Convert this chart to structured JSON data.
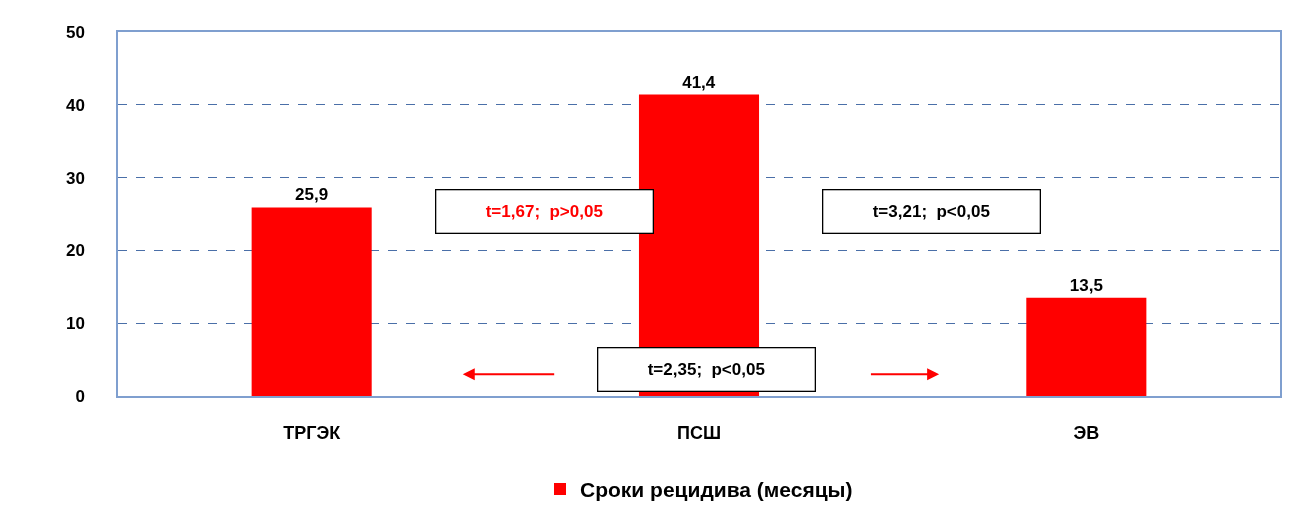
{
  "chart_data": {
    "type": "bar",
    "categories": [
      "ТРГЭК",
      "ПСШ",
      "ЭВ"
    ],
    "series": [
      {
        "name": "Сроки рецидива (месяцы)",
        "color": "#ff0000",
        "values": [
          25.9,
          41.4,
          13.5
        ],
        "value_labels": [
          "25,9",
          "41,4",
          "13,5"
        ]
      }
    ],
    "ylim": [
      0,
      50
    ],
    "yticks": [
      0,
      10,
      20,
      30,
      40,
      50
    ],
    "grid": "y",
    "legend": "bottom",
    "annotations": [
      "t=1,67;  p>0,05",
      "t=3,21;  p<0,05",
      "t=2,35;  p<0,05"
    ]
  }
}
